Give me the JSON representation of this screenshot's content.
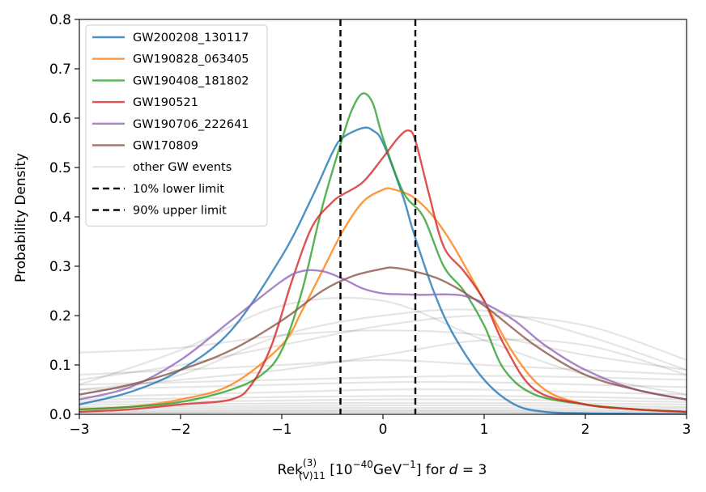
{
  "chart_data": {
    "type": "line",
    "title": "",
    "xlabel": {
      "main": "Rek",
      "sup": "(3)",
      "sub": "(V)11",
      "bracket_open": " [10",
      "bracket_exp": "−40",
      "bracket_unit": "GeV",
      "bracket_exp2": "−1",
      "bracket_close": "] for ",
      "var": "d",
      "equals": " = 3"
    },
    "ylabel": "Probability Density",
    "xlim": [
      -3,
      3
    ],
    "ylim": [
      0,
      0.8
    ],
    "xticks": [
      -3,
      -2,
      -1,
      0,
      1,
      2,
      3
    ],
    "xtick_labels": [
      "−3",
      "−2",
      "−1",
      "0",
      "1",
      "2",
      "3"
    ],
    "yticks": [
      0.0,
      0.1,
      0.2,
      0.3,
      0.4,
      0.5,
      0.6,
      0.7,
      0.8
    ],
    "ytick_labels": [
      "0.0",
      "0.1",
      "0.2",
      "0.3",
      "0.4",
      "0.5",
      "0.6",
      "0.7",
      "0.8"
    ],
    "grid": false,
    "legend_position": "top-left",
    "series": [
      {
        "name": "GW200208_130117",
        "color": "#1f77b4",
        "x": [
          -3,
          -2.5,
          -2,
          -1.5,
          -1,
          -0.7,
          -0.5,
          -0.4,
          -0.2,
          -0.1,
          0,
          0.2,
          0.3,
          0.5,
          0.7,
          1,
          1.3,
          1.6,
          2,
          2.5,
          3
        ],
        "y": [
          0.02,
          0.045,
          0.09,
          0.17,
          0.32,
          0.44,
          0.53,
          0.56,
          0.58,
          0.575,
          0.55,
          0.44,
          0.37,
          0.25,
          0.16,
          0.07,
          0.02,
          0.005,
          0.002,
          0.001,
          0.0
        ]
      },
      {
        "name": "GW190828_063405",
        "color": "#ff7f0e",
        "x": [
          -3,
          -2.5,
          -2,
          -1.5,
          -1,
          -0.8,
          -0.6,
          -0.4,
          -0.2,
          0,
          0.1,
          0.3,
          0.5,
          0.7,
          1,
          1.3,
          1.6,
          2,
          2.5,
          3
        ],
        "y": [
          0.01,
          0.015,
          0.03,
          0.06,
          0.14,
          0.21,
          0.29,
          0.37,
          0.43,
          0.455,
          0.456,
          0.44,
          0.4,
          0.34,
          0.23,
          0.12,
          0.05,
          0.02,
          0.01,
          0.005
        ]
      },
      {
        "name": "GW190408_181802",
        "color": "#2ca02c",
        "x": [
          -3,
          -2.5,
          -2,
          -1.5,
          -1.2,
          -1,
          -0.8,
          -0.6,
          -0.4,
          -0.3,
          -0.2,
          -0.1,
          0,
          0.2,
          0.4,
          0.6,
          0.8,
          1,
          1.2,
          1.5,
          2,
          2.5,
          3
        ],
        "y": [
          0.01,
          0.015,
          0.025,
          0.05,
          0.08,
          0.13,
          0.25,
          0.42,
          0.56,
          0.62,
          0.65,
          0.63,
          0.56,
          0.45,
          0.4,
          0.3,
          0.25,
          0.18,
          0.09,
          0.04,
          0.02,
          0.01,
          0.005
        ]
      },
      {
        "name": "GW190521",
        "color": "#d62728",
        "x": [
          -3,
          -2.5,
          -2,
          -1.5,
          -1.3,
          -1.1,
          -0.9,
          -0.7,
          -0.5,
          -0.4,
          -0.2,
          0,
          0.15,
          0.25,
          0.32,
          0.45,
          0.6,
          0.8,
          1,
          1.2,
          1.5,
          2,
          2.5,
          3
        ],
        "y": [
          0.005,
          0.01,
          0.02,
          0.03,
          0.06,
          0.14,
          0.27,
          0.38,
          0.43,
          0.445,
          0.47,
          0.52,
          0.56,
          0.575,
          0.555,
          0.45,
          0.34,
          0.29,
          0.23,
          0.14,
          0.05,
          0.02,
          0.01,
          0.005
        ]
      },
      {
        "name": "GW190706_222641",
        "color": "#9467bd",
        "x": [
          -3,
          -2.5,
          -2,
          -1.5,
          -1,
          -0.8,
          -0.6,
          -0.4,
          -0.2,
          0,
          0.2,
          0.4,
          0.6,
          0.8,
          1,
          1.3,
          1.6,
          2,
          2.5,
          3
        ],
        "y": [
          0.03,
          0.055,
          0.11,
          0.19,
          0.27,
          0.29,
          0.29,
          0.275,
          0.255,
          0.245,
          0.243,
          0.242,
          0.243,
          0.24,
          0.225,
          0.19,
          0.14,
          0.09,
          0.05,
          0.03
        ]
      },
      {
        "name": "GW170809",
        "color": "#8c564b",
        "x": [
          -3,
          -2.5,
          -2,
          -1.5,
          -1,
          -0.6,
          -0.3,
          0,
          0.1,
          0.3,
          0.6,
          1,
          1.5,
          2,
          2.5,
          3
        ],
        "y": [
          0.04,
          0.06,
          0.09,
          0.13,
          0.19,
          0.25,
          0.28,
          0.295,
          0.297,
          0.29,
          0.27,
          0.22,
          0.14,
          0.08,
          0.05,
          0.03
        ]
      }
    ],
    "background_series_name": "other GW events",
    "background_series": [
      {
        "x": [
          -3,
          -2,
          -1,
          0,
          1,
          2,
          3
        ],
        "y": [
          0.125,
          0.135,
          0.16,
          0.17,
          0.16,
          0.12,
          0.09
        ]
      },
      {
        "x": [
          -3,
          -2,
          -1,
          0,
          1,
          2,
          3
        ],
        "y": [
          0.06,
          0.13,
          0.22,
          0.23,
          0.15,
          0.08,
          0.04
        ]
      },
      {
        "x": [
          -3,
          -2,
          -1,
          0,
          1,
          2,
          3
        ],
        "y": [
          0.04,
          0.08,
          0.16,
          0.2,
          0.21,
          0.16,
          0.09
        ]
      },
      {
        "x": [
          -3,
          -2,
          -1,
          0,
          1,
          2,
          3
        ],
        "y": [
          0.07,
          0.1,
          0.14,
          0.18,
          0.2,
          0.18,
          0.11
        ]
      },
      {
        "x": [
          -3,
          -2,
          -1,
          0,
          1,
          2,
          3
        ],
        "y": [
          0.05,
          0.07,
          0.09,
          0.12,
          0.15,
          0.14,
          0.08
        ]
      },
      {
        "x": [
          -3,
          -2,
          -1,
          0,
          1,
          2,
          3
        ],
        "y": [
          0.08,
          0.09,
          0.1,
          0.11,
          0.1,
          0.09,
          0.08
        ]
      },
      {
        "x": [
          -3,
          -2,
          -1,
          0,
          1,
          2,
          3
        ],
        "y": [
          0.06,
          0.065,
          0.07,
          0.075,
          0.078,
          0.075,
          0.07
        ]
      },
      {
        "x": [
          -3,
          -2,
          -1,
          0,
          1,
          2,
          3
        ],
        "y": [
          0.05,
          0.055,
          0.06,
          0.065,
          0.065,
          0.06,
          0.055
        ]
      },
      {
        "x": [
          -3,
          -2,
          -1,
          0,
          1,
          2,
          3
        ],
        "y": [
          0.035,
          0.04,
          0.045,
          0.05,
          0.05,
          0.045,
          0.04
        ]
      },
      {
        "x": [
          -3,
          -2,
          -1,
          0,
          1,
          2,
          3
        ],
        "y": [
          0.03,
          0.032,
          0.035,
          0.037,
          0.037,
          0.035,
          0.03
        ]
      },
      {
        "x": [
          -3,
          -2,
          -1,
          0,
          1,
          2,
          3
        ],
        "y": [
          0.025,
          0.026,
          0.028,
          0.03,
          0.03,
          0.028,
          0.025
        ]
      },
      {
        "x": [
          -3,
          -2,
          -1,
          0,
          1,
          2,
          3
        ],
        "y": [
          0.02,
          0.021,
          0.022,
          0.023,
          0.023,
          0.022,
          0.02
        ]
      },
      {
        "x": [
          -3,
          -2,
          -1,
          0,
          1,
          2,
          3
        ],
        "y": [
          0.015,
          0.016,
          0.017,
          0.018,
          0.018,
          0.017,
          0.015
        ]
      },
      {
        "x": [
          -3,
          -2,
          -1,
          0,
          1,
          2,
          3
        ],
        "y": [
          0.012,
          0.012,
          0.013,
          0.013,
          0.013,
          0.012,
          0.012
        ]
      },
      {
        "x": [
          -3,
          -2,
          -1,
          0,
          1,
          2,
          3
        ],
        "y": [
          0.008,
          0.008,
          0.009,
          0.009,
          0.009,
          0.008,
          0.008
        ]
      },
      {
        "x": [
          -3,
          -2,
          -1,
          0,
          1,
          2,
          3
        ],
        "y": [
          0.005,
          0.005,
          0.006,
          0.006,
          0.006,
          0.005,
          0.005
        ]
      },
      {
        "x": [
          -3,
          -2,
          -1,
          0,
          1,
          2,
          3
        ],
        "y": [
          0.003,
          0.003,
          0.004,
          0.004,
          0.004,
          0.003,
          0.003
        ]
      }
    ],
    "vlines": [
      {
        "name": "10% lower limit",
        "x": -0.42,
        "style": "dashed",
        "color": "#000000"
      },
      {
        "name": "90% upper limit",
        "x": 0.32,
        "style": "dashed",
        "color": "#000000"
      }
    ]
  }
}
